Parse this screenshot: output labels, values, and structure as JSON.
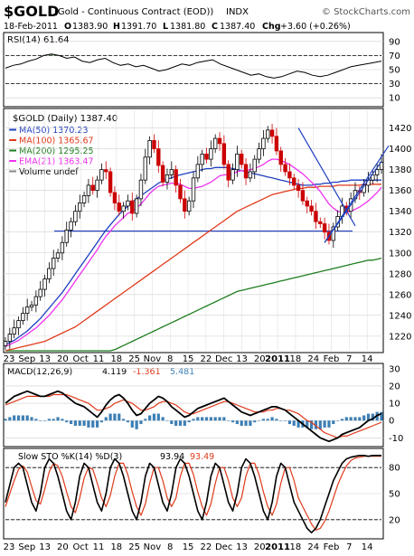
{
  "header": {
    "symbol": "$GOLD",
    "description": "(Gold - Continuous Contract (EOD))",
    "exchange": "INDX",
    "watermark": "© StockCharts.com",
    "date": "18-Feb-2011",
    "open_label": "O",
    "open": "1383.90",
    "high_label": "H",
    "high": "1391.70",
    "low_label": "L",
    "low": "1381.80",
    "close_label": "C",
    "close": "1387.40",
    "chg_label": "Chg",
    "chg": "+3.60 (+0.26%)"
  },
  "colors": {
    "price_up": "#000000",
    "price_down": "#cc0000",
    "ma50": "#1f3fbf",
    "ma100": "#e03a1a",
    "ma200": "#1e7d1e",
    "ema21": "#ee33ee",
    "rsi_fill": "#6e8f5e",
    "macd_line": "#000000",
    "macd_signal": "#e03a1a",
    "histogram": "#3d7fb5",
    "trendline": "#1f3fbf"
  },
  "chart_data": [
    {
      "type": "line",
      "panel": "rsi",
      "legend": "RSI(14) 61.64",
      "y_ticks": [
        90,
        70,
        50,
        30,
        10
      ],
      "ylim": [
        0,
        100
      ],
      "reference_lines": [
        70,
        30
      ],
      "values": [
        52,
        56,
        58,
        62,
        65,
        70,
        72,
        70,
        66,
        68,
        62,
        60,
        64,
        66,
        60,
        56,
        58,
        54,
        56,
        52,
        48,
        50,
        54,
        58,
        56,
        60,
        62,
        64,
        58,
        54,
        50,
        46,
        42,
        44,
        40,
        38,
        40,
        44,
        48,
        46,
        42,
        40,
        42,
        46,
        50,
        54,
        56,
        58,
        60,
        62
      ]
    },
    {
      "type": "candlestick",
      "panel": "price",
      "legend": {
        "title": "$GOLD (Daily) 1387.40",
        "entries": [
          {
            "label": "MA(50) 1370.23",
            "color": "#1f3fbf"
          },
          {
            "label": "MA(100) 1365.67",
            "color": "#e03a1a"
          },
          {
            "label": "MA(200) 1295.25",
            "color": "#1e7d1e"
          },
          {
            "label": "EMA(21) 1363.47",
            "color": "#ee33ee"
          },
          {
            "label": "Volume undef",
            "color": "#888888"
          }
        ]
      },
      "y_ticks": [
        1420,
        1400,
        1380,
        1360,
        1340,
        1320,
        1300,
        1280,
        1260,
        1240,
        1220
      ],
      "ylim": [
        1206,
        1437
      ],
      "x_tick_labels": [
        "23",
        "Sep",
        "13",
        "20",
        "Oct",
        "11",
        "18",
        "25",
        "Nov",
        "8",
        "15",
        "22",
        "Dec",
        "13",
        "20",
        "2011",
        "18",
        "24",
        "Feb",
        "7",
        "14"
      ],
      "close": [
        1215,
        1222,
        1228,
        1235,
        1242,
        1248,
        1250,
        1258,
        1265,
        1275,
        1285,
        1295,
        1300,
        1310,
        1322,
        1330,
        1340,
        1348,
        1355,
        1365,
        1360,
        1370,
        1380,
        1378,
        1358,
        1348,
        1340,
        1345,
        1350,
        1338,
        1352,
        1370,
        1392,
        1408,
        1400,
        1384,
        1368,
        1375,
        1380,
        1365,
        1352,
        1340,
        1350,
        1372,
        1385,
        1395,
        1390,
        1400,
        1410,
        1405,
        1385,
        1370,
        1380,
        1395,
        1385,
        1372,
        1378,
        1390,
        1400,
        1410,
        1418,
        1412,
        1398,
        1385,
        1378,
        1372,
        1365,
        1360,
        1350,
        1345,
        1340,
        1330,
        1328,
        1320,
        1312,
        1325,
        1335,
        1345,
        1340,
        1352,
        1360,
        1358,
        1365,
        1370,
        1375,
        1380,
        1387
      ],
      "ma50": [
        1212,
        1214,
        1216,
        1219,
        1222,
        1225,
        1229,
        1233,
        1237,
        1242,
        1247,
        1252,
        1257,
        1262,
        1268,
        1274,
        1280,
        1286,
        1292,
        1298,
        1304,
        1310,
        1316,
        1322,
        1327,
        1332,
        1337,
        1341,
        1345,
        1349,
        1352,
        1355,
        1358,
        1361,
        1364,
        1367,
        1369,
        1371,
        1372,
        1374,
        1375,
        1376,
        1377,
        1378,
        1379,
        1380,
        1381,
        1381,
        1382,
        1382,
        1382,
        1382,
        1381,
        1380,
        1379,
        1378,
        1377,
        1376,
        1375,
        1374,
        1373,
        1372,
        1371,
        1370,
        1369,
        1368,
        1367,
        1366,
        1365,
        1365,
        1365,
        1366,
        1366,
        1367,
        1367,
        1368,
        1368,
        1369,
        1369,
        1370,
        1370,
        1370,
        1370,
        1370,
        1370,
        1370,
        1370
      ],
      "ma100": [
        1206,
        1207,
        1208,
        1209,
        1210,
        1211,
        1212,
        1213,
        1214,
        1215,
        1217,
        1219,
        1221,
        1223,
        1225,
        1227,
        1229,
        1232,
        1235,
        1238,
        1241,
        1244,
        1247,
        1250,
        1253,
        1256,
        1259,
        1262,
        1265,
        1268,
        1271,
        1274,
        1277,
        1280,
        1283,
        1286,
        1289,
        1292,
        1295,
        1298,
        1301,
        1304,
        1307,
        1310,
        1313,
        1316,
        1319,
        1322,
        1325,
        1328,
        1331,
        1334,
        1337,
        1340,
        1342,
        1344,
        1346,
        1348,
        1350,
        1352,
        1354,
        1356,
        1357,
        1358,
        1359,
        1360,
        1361,
        1362,
        1362,
        1363,
        1363,
        1363,
        1364,
        1364,
        1364,
        1364,
        1365,
        1365,
        1365,
        1365,
        1365,
        1365,
        1366,
        1366,
        1366,
        1366,
        1366
      ],
      "ma200": [
        1206,
        1206,
        1206,
        1206,
        1206,
        1206,
        1206,
        1206,
        1206,
        1206,
        1206,
        1206,
        1206,
        1206,
        1206,
        1206,
        1206,
        1206,
        1206,
        1206,
        1206,
        1206,
        1206,
        1206,
        1206,
        1207,
        1209,
        1211,
        1213,
        1215,
        1217,
        1219,
        1221,
        1223,
        1225,
        1227,
        1229,
        1231,
        1233,
        1235,
        1237,
        1239,
        1241,
        1243,
        1245,
        1247,
        1249,
        1251,
        1253,
        1255,
        1257,
        1259,
        1261,
        1263,
        1264,
        1265,
        1266,
        1267,
        1268,
        1269,
        1270,
        1271,
        1272,
        1273,
        1274,
        1275,
        1276,
        1277,
        1278,
        1279,
        1280,
        1281,
        1282,
        1283,
        1284,
        1285,
        1286,
        1287,
        1288,
        1289,
        1290,
        1291,
        1292,
        1293,
        1293,
        1294,
        1295
      ],
      "ema21": [
        1210,
        1212,
        1214,
        1216,
        1219,
        1222,
        1225,
        1228,
        1232,
        1236,
        1240,
        1245,
        1250,
        1255,
        1261,
        1267,
        1273,
        1279,
        1285,
        1291,
        1297,
        1303,
        1310,
        1316,
        1321,
        1326,
        1330,
        1334,
        1338,
        1340,
        1343,
        1347,
        1352,
        1357,
        1361,
        1364,
        1365,
        1366,
        1367,
        1367,
        1366,
        1364,
        1362,
        1362,
        1363,
        1364,
        1366,
        1368,
        1371,
        1374,
        1375,
        1375,
        1376,
        1378,
        1379,
        1379,
        1380,
        1381,
        1383,
        1385,
        1388,
        1390,
        1390,
        1389,
        1387,
        1385,
        1382,
        1379,
        1376,
        1372,
        1368,
        1364,
        1359,
        1353,
        1347,
        1343,
        1340,
        1339,
        1339,
        1340,
        1342,
        1344,
        1347,
        1350,
        1354,
        1358,
        1363
      ],
      "horizontal_line": 1321,
      "trendlines": [
        [
          [
            67,
            1420
          ],
          [
            80,
            1326
          ]
        ],
        [
          [
            73,
            1310
          ],
          [
            86,
            1388
          ]
        ]
      ]
    },
    {
      "type": "line",
      "panel": "macd",
      "legend": {
        "prefix": "MACD(12,26,9)",
        "macd": "4.119",
        "signal": "-1.361",
        "histogram": "5.481"
      },
      "y_ticks": [
        30,
        20,
        10,
        0,
        -10
      ],
      "ylim": [
        -14,
        32
      ],
      "macd": [
        10,
        12,
        14,
        15,
        16,
        17,
        16,
        15,
        14,
        14,
        15,
        16,
        17,
        16,
        14,
        12,
        10,
        9,
        8,
        6,
        4,
        2,
        5,
        9,
        12,
        14,
        15,
        13,
        10,
        6,
        3,
        4,
        7,
        10,
        12,
        14,
        13,
        11,
        8,
        6,
        4,
        2,
        3,
        5,
        7,
        8,
        9,
        10,
        11,
        12,
        13,
        11,
        9,
        7,
        5,
        4,
        3,
        4,
        5,
        6,
        7,
        8,
        8,
        7,
        6,
        4,
        2,
        0,
        -2,
        -4,
        -6,
        -8,
        -10,
        -11,
        -12,
        -11,
        -10,
        -8,
        -7,
        -6,
        -5,
        -4,
        -2,
        0,
        1,
        3,
        4
      ],
      "signal": [
        9,
        10,
        11,
        12,
        13,
        14,
        14,
        14,
        14,
        14,
        14,
        15,
        15,
        15,
        15,
        14,
        13,
        12,
        11,
        10,
        8,
        6,
        6,
        7,
        8,
        10,
        11,
        12,
        11,
        10,
        8,
        6,
        6,
        7,
        8,
        10,
        11,
        11,
        10,
        9,
        7,
        5,
        4,
        4,
        5,
        6,
        7,
        8,
        9,
        10,
        11,
        11,
        10,
        9,
        8,
        7,
        6,
        5,
        5,
        5,
        6,
        6,
        7,
        7,
        6,
        6,
        5,
        4,
        2,
        0,
        -1,
        -3,
        -5,
        -7,
        -8,
        -9,
        -10,
        -9,
        -9,
        -8,
        -7,
        -6,
        -5,
        -4,
        -3,
        -2,
        -1
      ]
    },
    {
      "type": "line",
      "panel": "stochastic",
      "legend": {
        "prefix": "Slow STO %K(14) %D(3)",
        "k": "93.94",
        "d": "93.49"
      },
      "y_ticks": [
        80,
        50,
        20
      ],
      "ylim": [
        0,
        100
      ],
      "reference_lines": [
        80,
        20
      ],
      "k": [
        40,
        60,
        80,
        85,
        80,
        60,
        40,
        30,
        50,
        80,
        90,
        85,
        70,
        50,
        30,
        20,
        40,
        70,
        85,
        80,
        60,
        40,
        30,
        50,
        80,
        90,
        85,
        70,
        50,
        30,
        20,
        40,
        70,
        85,
        80,
        60,
        40,
        30,
        50,
        80,
        90,
        85,
        70,
        50,
        30,
        20,
        40,
        70,
        85,
        80,
        60,
        40,
        30,
        50,
        80,
        90,
        85,
        70,
        50,
        30,
        20,
        40,
        70,
        85,
        80,
        60,
        40,
        30,
        20,
        10,
        5,
        10,
        20,
        35,
        50,
        65,
        75,
        85,
        90,
        92,
        93,
        94,
        94,
        93,
        94,
        94,
        94
      ],
      "d": [
        35,
        50,
        65,
        78,
        82,
        75,
        58,
        42,
        38,
        55,
        75,
        85,
        82,
        70,
        52,
        35,
        28,
        45,
        68,
        80,
        78,
        62,
        45,
        35,
        48,
        70,
        85,
        85,
        72,
        52,
        35,
        25,
        38,
        62,
        80,
        80,
        65,
        45,
        35,
        45,
        70,
        85,
        85,
        72,
        52,
        35,
        25,
        38,
        62,
        80,
        80,
        65,
        45,
        35,
        45,
        70,
        85,
        85,
        72,
        52,
        35,
        25,
        38,
        62,
        80,
        80,
        65,
        45,
        35,
        25,
        15,
        8,
        10,
        18,
        30,
        45,
        60,
        72,
        82,
        88,
        91,
        92,
        93,
        93,
        93,
        93,
        93
      ]
    }
  ]
}
